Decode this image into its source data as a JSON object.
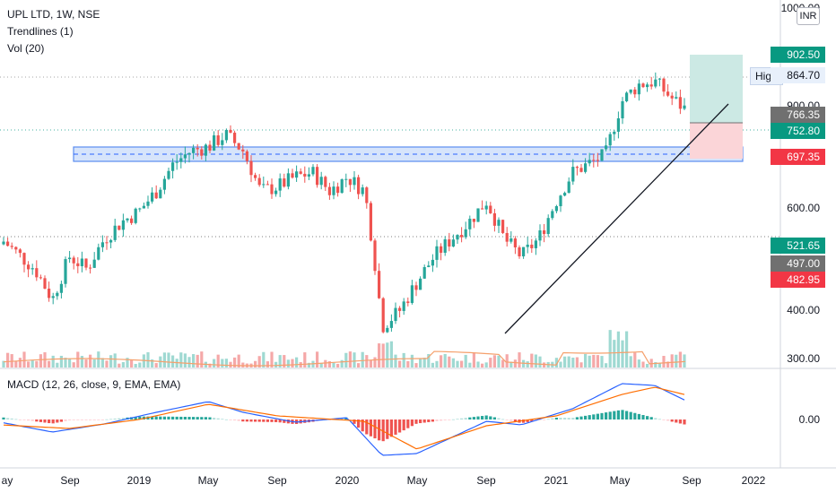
{
  "legend": {
    "symbol": "UPL LTD, 1W, NSE",
    "indicator_1": "Trendlines (1)",
    "indicator_2": "Vol (20)",
    "macd": "MACD (12, 26, close, 9, EMA, EMA)"
  },
  "currency": "INR",
  "price_axis": {
    "ticks": [
      "1000.00",
      "900.00",
      "600.00",
      "400.00",
      "300.00"
    ],
    "macd_ticks": [
      "0.00"
    ]
  },
  "price_labels": [
    {
      "value": "902.50",
      "color": "#089981"
    },
    {
      "value": "864.70",
      "label": "High",
      "color": "#e8f0fb"
    },
    {
      "value": "766.35",
      "color": "#707070"
    },
    {
      "value": "752.80",
      "color": "#089981"
    },
    {
      "value": "697.35",
      "color": "#f23645"
    },
    {
      "value": "521.65",
      "color": "#089981"
    },
    {
      "value": "497.00",
      "color": "#707070"
    },
    {
      "value": "482.95",
      "color": "#f23645"
    }
  ],
  "time_axis": [
    "ay",
    "Sep",
    "2019",
    "May",
    "Sep",
    "2020",
    "May",
    "Sep",
    "2021",
    "May",
    "Sep",
    "2022"
  ],
  "chart_data": {
    "type": "candlestick",
    "scale": "log",
    "symbol": "UPL LTD",
    "interval": "1W",
    "exchange": "NSE",
    "price_key_levels": {
      "high": 864.7,
      "last": 752.8,
      "target": 902.5,
      "entry": 766.35,
      "stop": 697.35
    },
    "support_zone": [
      690,
      720
    ],
    "trendline": [
      {
        "date": "2020-11",
        "price": 340
      },
      {
        "date": "2021-09",
        "price": 800
      }
    ],
    "close_trace": [
      {
        "date": "2018-05",
        "price": 470
      },
      {
        "date": "2018-07",
        "price": 420
      },
      {
        "date": "2018-08",
        "price": 375
      },
      {
        "date": "2018-09",
        "price": 440
      },
      {
        "date": "2018-10",
        "price": 420
      },
      {
        "date": "2018-11",
        "price": 470
      },
      {
        "date": "2018-12",
        "price": 500
      },
      {
        "date": "2019-01",
        "price": 520
      },
      {
        "date": "2019-02",
        "price": 560
      },
      {
        "date": "2019-03",
        "price": 620
      },
      {
        "date": "2019-04",
        "price": 650
      },
      {
        "date": "2019-05",
        "price": 660
      },
      {
        "date": "2019-06",
        "price": 690
      },
      {
        "date": "2019-07",
        "price": 650
      },
      {
        "date": "2019-08",
        "price": 560
      },
      {
        "date": "2019-09",
        "price": 570
      },
      {
        "date": "2019-10",
        "price": 590
      },
      {
        "date": "2019-11",
        "price": 600
      },
      {
        "date": "2019-12",
        "price": 560
      },
      {
        "date": "2020-01",
        "price": 590
      },
      {
        "date": "2020-02",
        "price": 560
      },
      {
        "date": "2020-03",
        "price": 340
      },
      {
        "date": "2020-04",
        "price": 360
      },
      {
        "date": "2020-05",
        "price": 400
      },
      {
        "date": "2020-06",
        "price": 440
      },
      {
        "date": "2020-07",
        "price": 470
      },
      {
        "date": "2020-08",
        "price": 500
      },
      {
        "date": "2020-09",
        "price": 540
      },
      {
        "date": "2020-10",
        "price": 470
      },
      {
        "date": "2020-11",
        "price": 440
      },
      {
        "date": "2020-12",
        "price": 470
      },
      {
        "date": "2021-01",
        "price": 540
      },
      {
        "date": "2021-02",
        "price": 600
      },
      {
        "date": "2021-03",
        "price": 620
      },
      {
        "date": "2021-04",
        "price": 640
      },
      {
        "date": "2021-05",
        "price": 780
      },
      {
        "date": "2021-06",
        "price": 830
      },
      {
        "date": "2021-07",
        "price": 840
      },
      {
        "date": "2021-08",
        "price": 790
      },
      {
        "date": "2021-09",
        "price": 752.8
      }
    ],
    "macd_line": [
      {
        "date": "2018-05",
        "value": -3
      },
      {
        "date": "2018-08",
        "value": -14
      },
      {
        "date": "2018-11",
        "value": -5
      },
      {
        "date": "2019-02",
        "value": 8
      },
      {
        "date": "2019-05",
        "value": 20
      },
      {
        "date": "2019-07",
        "value": 8
      },
      {
        "date": "2019-10",
        "value": -3
      },
      {
        "date": "2020-01",
        "value": 2
      },
      {
        "date": "2020-03",
        "value": -40
      },
      {
        "date": "2020-05",
        "value": -38
      },
      {
        "date": "2020-09",
        "value": -2
      },
      {
        "date": "2020-11",
        "value": -6
      },
      {
        "date": "2021-02",
        "value": 12
      },
      {
        "date": "2021-05",
        "value": 40
      },
      {
        "date": "2021-07",
        "value": 38
      },
      {
        "date": "2021-09",
        "value": 20
      }
    ],
    "signal_line": [
      {
        "date": "2018-05",
        "value": -6
      },
      {
        "date": "2018-09",
        "value": -10
      },
      {
        "date": "2019-01",
        "value": 0
      },
      {
        "date": "2019-05",
        "value": 17
      },
      {
        "date": "2019-09",
        "value": 4
      },
      {
        "date": "2020-02",
        "value": -2
      },
      {
        "date": "2020-05",
        "value": -33
      },
      {
        "date": "2020-09",
        "value": -7
      },
      {
        "date": "2021-01",
        "value": 4
      },
      {
        "date": "2021-05",
        "value": 28
      },
      {
        "date": "2021-07",
        "value": 36
      },
      {
        "date": "2021-09",
        "value": 27
      }
    ]
  }
}
